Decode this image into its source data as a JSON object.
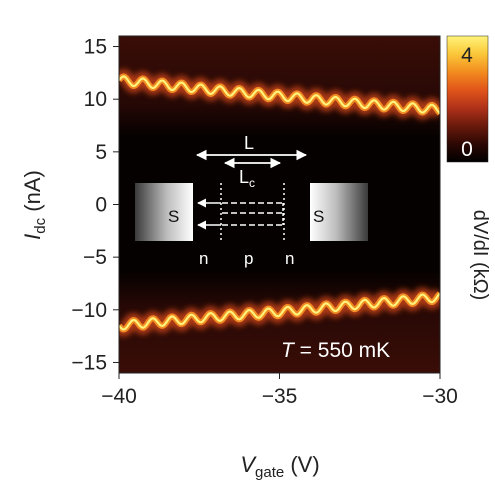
{
  "chart_data": {
    "type": "heatmap",
    "x_axis": {
      "label_main": "V",
      "label_sub": "gate",
      "label_unit": " (V)",
      "range": [
        -40,
        -30
      ],
      "ticks": [
        -40,
        -35,
        -30
      ],
      "tick_labels": [
        "−40",
        "−35",
        "−30"
      ]
    },
    "y_axis": {
      "label_main": "I",
      "label_sub": "dc",
      "label_unit": " (nA)",
      "range": [
        -16,
        16
      ],
      "ticks": [
        15,
        10,
        5,
        0,
        -5,
        -10,
        -15
      ],
      "tick_labels": [
        "15",
        "10",
        "5",
        "0",
        "−5",
        "−10",
        "−15"
      ]
    },
    "colorbar": {
      "label": "dV/dI (kΩ)",
      "range": [
        0,
        4
      ],
      "tick_labels": [
        "4",
        "0"
      ],
      "colors": [
        "#000000",
        "#2b0703",
        "#6b1a0c",
        "#b0321a",
        "#e0541a",
        "#f28a1e",
        "#fbc83a",
        "#fff37a"
      ]
    },
    "background_color": "#3a0d07",
    "switching_current": {
      "description": "bright ridges where dV/dI is maximal (oscillating critical current)",
      "v_gate": [
        -40,
        -37.5,
        -35,
        -32.5,
        -30
      ],
      "upper_ridge_nA": [
        11.8,
        11.0,
        10.3,
        9.6,
        9.0
      ],
      "lower_ridge_nA": [
        -11.5,
        -10.8,
        -10.2,
        -9.5,
        -8.8
      ],
      "oscillation_period_V": 0.6,
      "oscillation_amplitude_nA": 0.4,
      "ridge_peak_dVdI_kOhm": 4
    },
    "annotation": {
      "temperature": "T = 550 mK",
      "temperature_symbol": "T",
      "temperature_value": " = 550 mK"
    },
    "inset": {
      "left_contact": "S",
      "right_contact": "S",
      "regions": [
        "n",
        "p",
        "n"
      ],
      "length_total": "L",
      "length_cavity": "L",
      "length_cavity_sub": "c"
    }
  }
}
